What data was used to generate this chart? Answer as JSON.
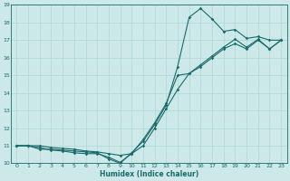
{
  "xlabel": "Humidex (Indice chaleur)",
  "bg_color": "#cce8e8",
  "grid_color": "#b0d8d8",
  "line_color": "#1a6b6b",
  "xlim": [
    -0.5,
    23.5
  ],
  "ylim": [
    10,
    19
  ],
  "xticks": [
    0,
    1,
    2,
    3,
    4,
    5,
    6,
    7,
    8,
    9,
    10,
    11,
    12,
    13,
    14,
    15,
    16,
    17,
    18,
    19,
    20,
    21,
    22,
    23
  ],
  "yticks": [
    10,
    11,
    12,
    13,
    14,
    15,
    16,
    17,
    18,
    19
  ],
  "line1_x": [
    0,
    1,
    2,
    3,
    4,
    5,
    6,
    7,
    8,
    9,
    10,
    11,
    12,
    13,
    14,
    15,
    16,
    17,
    18,
    19,
    20,
    21,
    22,
    23
  ],
  "line1_y": [
    11,
    11,
    10.8,
    10.8,
    10.75,
    10.7,
    10.65,
    10.6,
    10.25,
    10.0,
    10.6,
    11.25,
    12.2,
    13.3,
    15.5,
    18.3,
    18.8,
    18.2,
    17.5,
    17.6,
    17.1,
    17.2,
    17.0,
    17.0
  ],
  "line2_x": [
    0,
    1,
    2,
    3,
    4,
    5,
    6,
    7,
    8,
    9,
    10,
    11,
    12,
    13,
    14,
    15,
    16,
    17,
    18,
    19,
    20,
    21,
    22,
    23
  ],
  "line2_y": [
    11,
    11,
    11,
    10.9,
    10.85,
    10.8,
    10.7,
    10.65,
    10.55,
    10.45,
    10.55,
    11.0,
    12.0,
    13.1,
    14.2,
    15.1,
    15.5,
    16.0,
    16.5,
    16.8,
    16.5,
    17.0,
    16.5,
    17.0
  ],
  "line3_x": [
    0,
    1,
    2,
    3,
    4,
    5,
    6,
    7,
    8,
    9,
    10,
    11,
    12,
    13,
    14,
    15,
    16,
    17,
    18,
    19,
    20,
    21,
    22,
    23
  ],
  "line3_y": [
    11,
    11,
    10.9,
    10.75,
    10.7,
    10.6,
    10.55,
    10.55,
    10.35,
    10.05,
    10.55,
    11.35,
    12.3,
    13.4,
    15.0,
    15.1,
    15.6,
    16.1,
    16.6,
    17.05,
    16.6,
    17.05,
    16.5,
    17.0
  ]
}
